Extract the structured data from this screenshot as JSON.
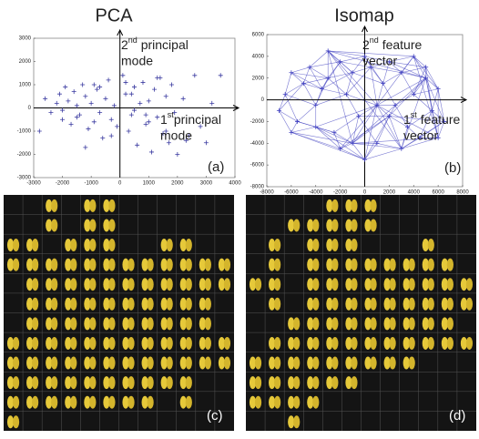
{
  "chart_data": [
    {
      "type": "scatter",
      "title": "PCA",
      "marker": "+",
      "color": "#3a3aa0",
      "x": [
        -2800,
        -2600,
        -2400,
        -2200,
        -2100,
        -2000,
        -1900,
        -1800,
        -1700,
        -1600,
        -1500,
        -1400,
        -1300,
        -1200,
        -1100,
        -1000,
        -900,
        -800,
        -700,
        -600,
        -500,
        -400,
        -300,
        -200,
        -100,
        100,
        200,
        300,
        400,
        500,
        600,
        700,
        800,
        900,
        1000,
        1100,
        1200,
        1300,
        1400,
        1500,
        1600,
        1700,
        1800,
        1900,
        2000,
        2200,
        2400,
        2600,
        2800,
        3000,
        3200,
        3500,
        -1500,
        -900,
        -300,
        400,
        1000,
        1600,
        2300,
        -2000,
        -700,
        500,
        1300,
        -1200,
        200,
        900
      ],
      "y": [
        -1000,
        400,
        -200,
        200,
        600,
        -500,
        900,
        300,
        -700,
        700,
        100,
        -300,
        1000,
        500,
        -900,
        200,
        -600,
        800,
        -200,
        -1300,
        400,
        1200,
        -500,
        100,
        -800,
        1400,
        600,
        -1000,
        -300,
        900,
        -1600,
        200,
        1100,
        -700,
        300,
        -1900,
        800,
        -400,
        1300,
        -1100,
        500,
        -1500,
        1000,
        -200,
        -2000,
        400,
        -1200,
        1400,
        -800,
        -1500,
        200,
        1400,
        -400,
        1000,
        -1200,
        600,
        -600,
        -1000,
        -1400,
        -100,
        900,
        -100,
        1300,
        -1700,
        1100,
        -300
      ],
      "xlim": [
        -3000,
        4000
      ],
      "ylim": [
        -3000,
        3000
      ],
      "xticks": [
        -3000,
        -2000,
        -1000,
        0,
        1000,
        2000,
        3000,
        4000
      ],
      "yticks": [
        -3000,
        -2000,
        -1000,
        0,
        1000,
        2000,
        3000
      ],
      "annotations": [
        {
          "lead": "2",
          "sup": "nd",
          "rest": " principal",
          "line2": "mode"
        },
        {
          "lead": "1",
          "sup": "st",
          "rest": "principal",
          "line2": "mode"
        }
      ],
      "panel_label": "(a)"
    },
    {
      "type": "network",
      "title": "Isomap",
      "marker": "+",
      "color": "#4040c0",
      "x": [
        -7000,
        -6500,
        -6000,
        -5500,
        -5000,
        -4500,
        -4000,
        -3500,
        -3000,
        -2500,
        -2000,
        -1500,
        -1000,
        -500,
        0,
        500,
        1000,
        1500,
        2000,
        2500,
        3000,
        3500,
        4000,
        4500,
        5000,
        5500,
        6000,
        6500,
        -6000,
        -4000,
        -2000,
        0,
        2000,
        4000,
        6000,
        -3000,
        -1000,
        1000,
        3000,
        5000
      ],
      "y": [
        -1000,
        500,
        2500,
        -2000,
        1500,
        3000,
        -500,
        1000,
        2000,
        -3000,
        3500,
        500,
        2500,
        -1500,
        4000,
        3000,
        -4000,
        1500,
        3500,
        -500,
        2500,
        -2500,
        500,
        -3500,
        3000,
        -1000,
        1000,
        -2000,
        -3000,
        -2500,
        -4500,
        -5500,
        -1500,
        4000,
        -3500,
        4500,
        -4000,
        -500,
        -4500,
        2000
      ],
      "xlim": [
        -8000,
        8000
      ],
      "ylim": [
        -8000,
        6000
      ],
      "xticks": [
        -8000,
        -6000,
        -4000,
        -2000,
        0,
        2000,
        4000,
        6000,
        8000
      ],
      "yticks": [
        -8000,
        -6000,
        -4000,
        -2000,
        0,
        2000,
        4000,
        6000
      ],
      "annotations": [
        {
          "lead": "2",
          "sup": "nd",
          "rest": " feature",
          "line2": "vector"
        },
        {
          "lead": "1",
          "sup": "st",
          "rest": " feature",
          "line2": "vector"
        }
      ],
      "panel_label": "(b)"
    }
  ],
  "panels": [
    {
      "label": "(c)"
    },
    {
      "label": "(d)"
    }
  ]
}
